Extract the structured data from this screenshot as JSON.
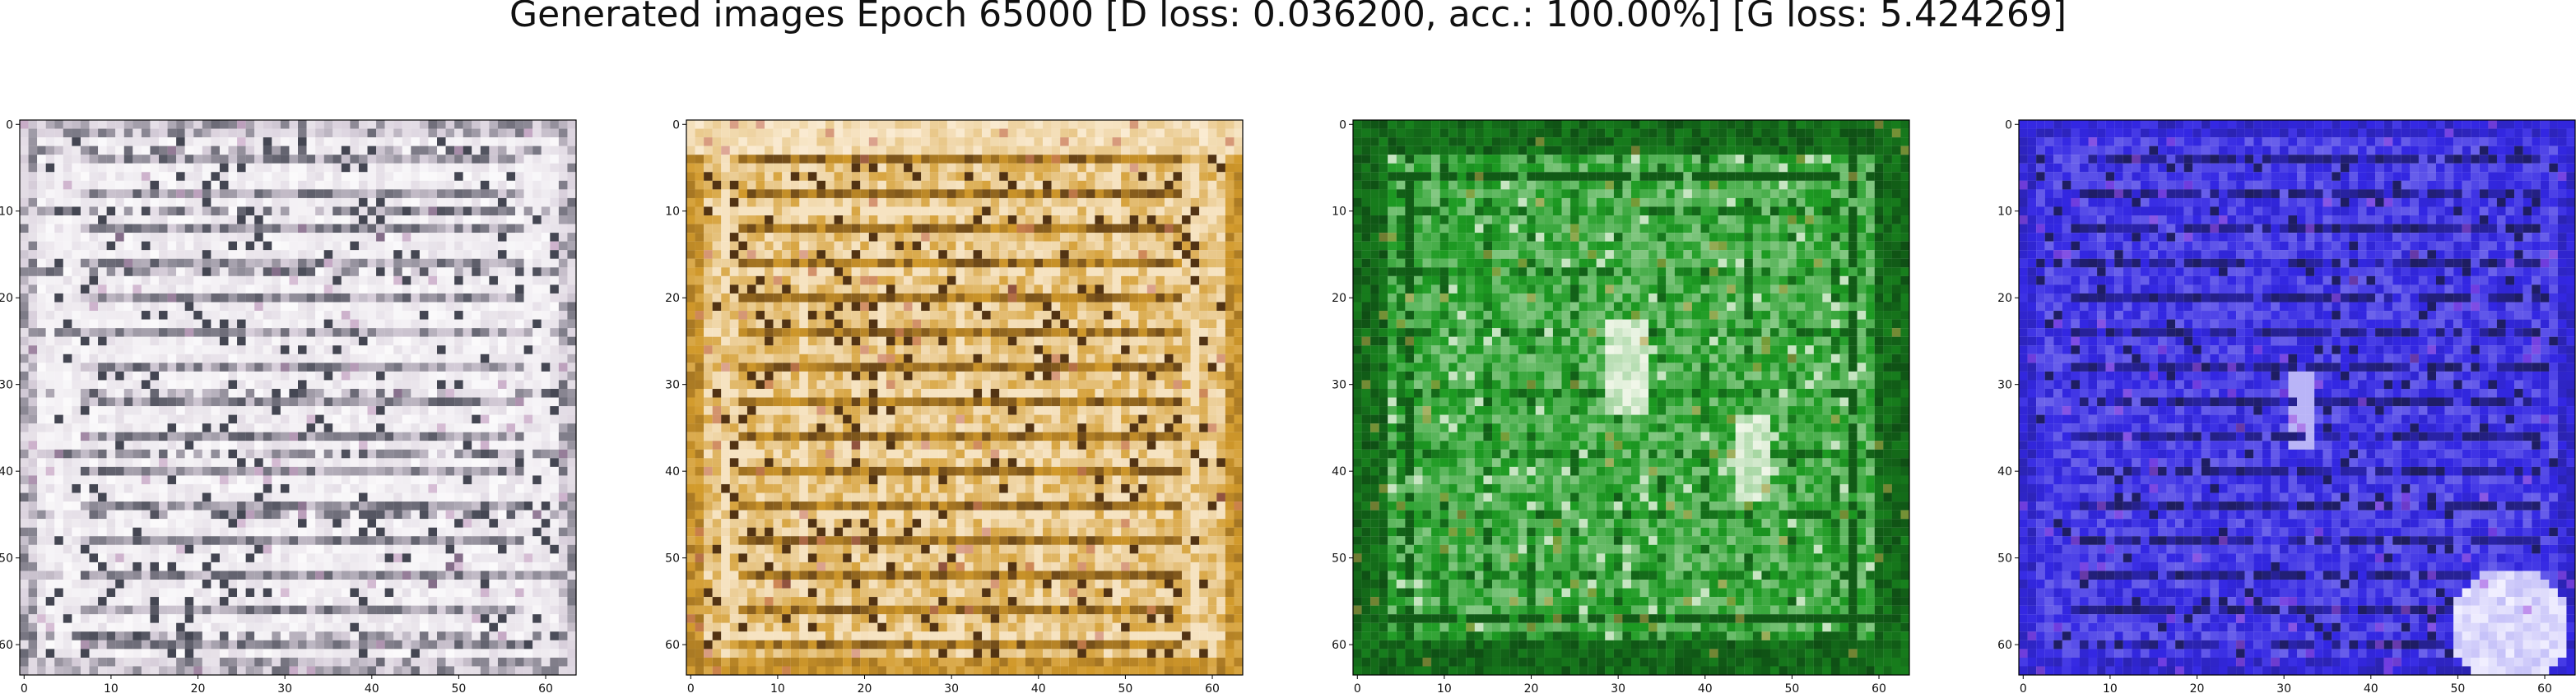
{
  "chart_data": [
    {
      "type": "heatmap",
      "title": "",
      "xlabel": "",
      "ylabel": "",
      "x_ticks": [
        0,
        10,
        20,
        30,
        40,
        50,
        60
      ],
      "y_ticks": [
        0,
        10,
        20,
        30,
        40,
        50,
        60
      ],
      "xlim": [
        -0.5,
        63.5
      ],
      "ylim": [
        63.5,
        -0.5
      ],
      "grid": false,
      "base_color": "#d9d0dc",
      "dark_color": "#1f2430",
      "light_color": "#ffffff",
      "accent_color": "#b98db6"
    },
    {
      "type": "heatmap",
      "title": "",
      "xlabel": "",
      "ylabel": "",
      "x_ticks": [
        0,
        10,
        20,
        30,
        40,
        50,
        60
      ],
      "y_ticks": [
        0,
        10,
        20,
        30,
        40,
        50,
        60
      ],
      "xlim": [
        -0.5,
        63.5
      ],
      "ylim": [
        63.5,
        -0.5
      ],
      "grid": false,
      "base_color": "#d29a2b",
      "dark_color": "#3a1f0f",
      "light_color": "#fff5e7",
      "accent_color": "#c56e63"
    },
    {
      "type": "heatmap",
      "title": "",
      "xlabel": "",
      "ylabel": "",
      "x_ticks": [
        0,
        10,
        20,
        30,
        40,
        50,
        60
      ],
      "y_ticks": [
        0,
        10,
        20,
        30,
        40,
        50,
        60
      ],
      "xlim": [
        -0.5,
        63.5
      ],
      "ylim": [
        63.5,
        -0.5
      ],
      "grid": false,
      "base_color": "#1d9b22",
      "dark_color": "#0a3510",
      "light_color": "#f2f7ea",
      "accent_color": "#bfa04a"
    },
    {
      "type": "heatmap",
      "title": "",
      "xlabel": "",
      "ylabel": "",
      "x_ticks": [
        0,
        10,
        20,
        30,
        40,
        50,
        60
      ],
      "y_ticks": [
        0,
        10,
        20,
        30,
        40,
        50,
        60
      ],
      "xlim": [
        -0.5,
        63.5
      ],
      "ylim": [
        63.5,
        -0.5
      ],
      "grid": false,
      "base_color": "#3327e3",
      "dark_color": "#181a3a",
      "light_color": "#f2f0ff",
      "accent_color": "#a14fe0"
    }
  ],
  "figure": {
    "title": "Generated images Epoch 65000 [D loss: 0.036200, acc.: 100.00%] [G loss: 5.424269]"
  }
}
